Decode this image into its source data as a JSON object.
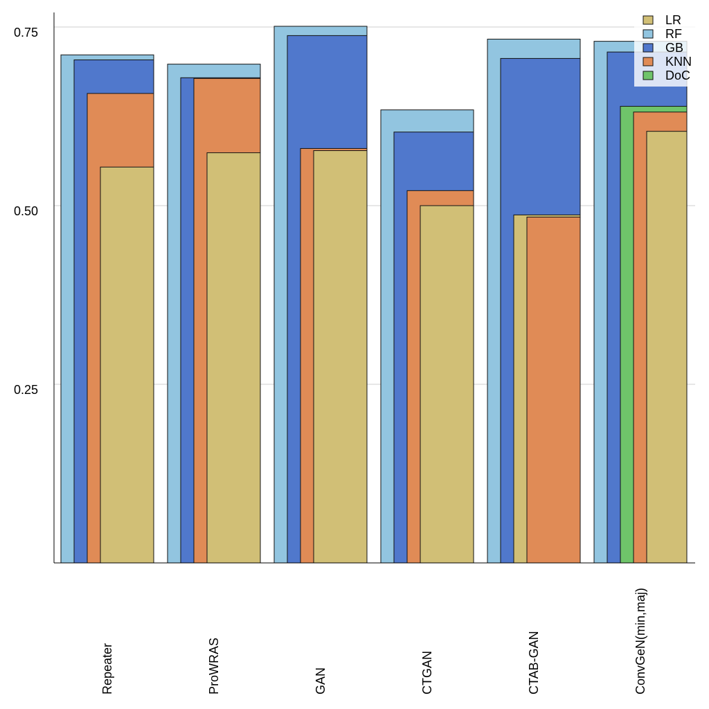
{
  "chart_data": {
    "type": "bar",
    "categories": [
      "Repeater",
      "ProWRAS",
      "GAN",
      "CTGAN",
      "CTAB-GAN",
      "ConvGeN(min,maj)"
    ],
    "series": [
      {
        "name": "LR",
        "color": "#d1bf76",
        "values": [
          0.554,
          0.574,
          0.577,
          0.5,
          0.487,
          0.604
        ]
      },
      {
        "name": "RF",
        "color": "#92c5e0",
        "values": [
          0.711,
          0.698,
          0.751,
          0.634,
          0.733,
          0.73
        ]
      },
      {
        "name": "GB",
        "color": "#5078cc",
        "values": [
          0.704,
          0.679,
          0.738,
          0.603,
          0.706,
          0.715
        ]
      },
      {
        "name": "KNN",
        "color": "#e08b56",
        "values": [
          0.657,
          0.678,
          0.58,
          0.521,
          0.484,
          0.631
        ]
      },
      {
        "name": "DoC",
        "color": "#6fc46a",
        "values": [
          null,
          null,
          null,
          null,
          null,
          0.639
        ]
      }
    ],
    "ylim": [
      0,
      0.75
    ],
    "yticks": [
      0.25,
      {
        "value": 0.5,
        "label": "0.50"
      },
      0.75
    ],
    "grid": true,
    "legend": "top-right"
  }
}
